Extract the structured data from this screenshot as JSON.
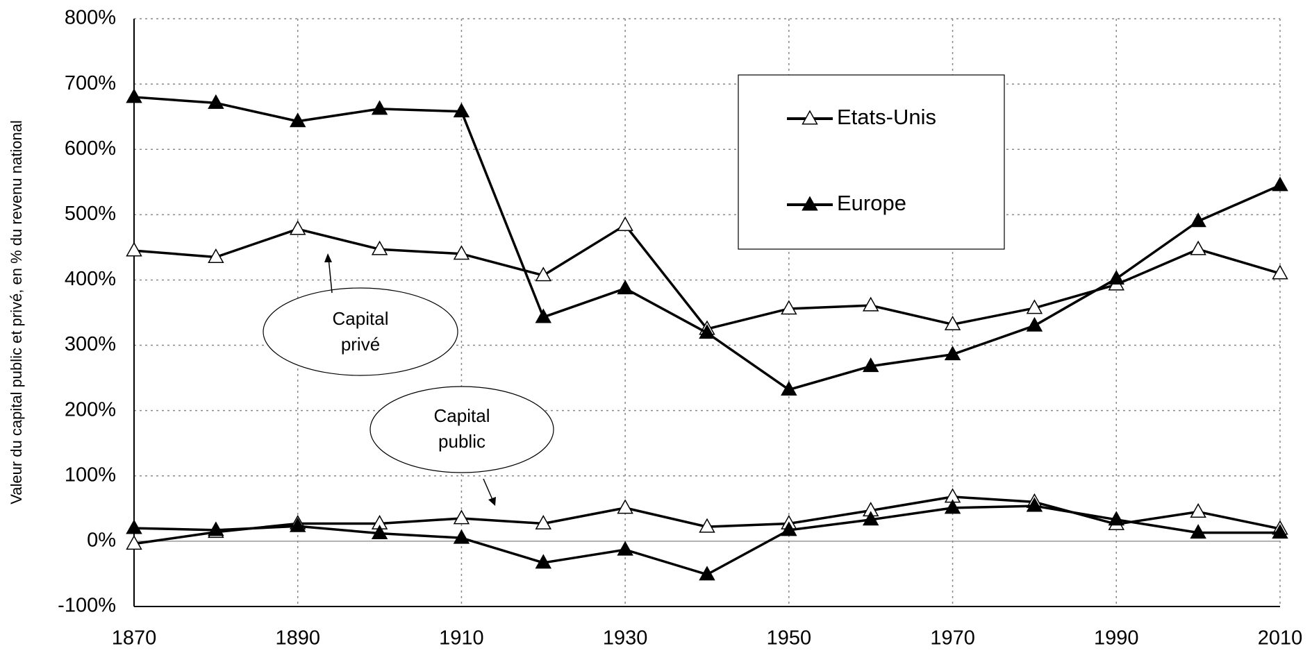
{
  "chart_data": {
    "type": "line",
    "y_label": "Valeur du capital public et privé, en % du revenu national",
    "x": [
      1870,
      1880,
      1890,
      1900,
      1910,
      1920,
      1930,
      1940,
      1950,
      1960,
      1970,
      1980,
      1990,
      2000,
      2010
    ],
    "xlim": [
      1870,
      2010
    ],
    "xticks": [
      1870,
      1890,
      1910,
      1930,
      1950,
      1970,
      1990,
      2010
    ],
    "ylim": [
      -100,
      800
    ],
    "yticks": [
      {
        "value": -100,
        "label": "-100%"
      },
      {
        "value": 0,
        "label": "0%"
      },
      {
        "value": 100,
        "label": "100%"
      },
      {
        "value": 200,
        "label": "200%"
      },
      {
        "value": 300,
        "label": "300%"
      },
      {
        "value": 400,
        "label": "400%"
      },
      {
        "value": 500,
        "label": "500%"
      },
      {
        "value": 600,
        "label": "600%"
      },
      {
        "value": 700,
        "label": "700%"
      },
      {
        "value": 800,
        "label": "800%"
      }
    ],
    "grid": true,
    "series": [
      {
        "name": "Etats-Unis",
        "color": "#000000",
        "marker": "open",
        "values": [
          445,
          435,
          478,
          447,
          440,
          407,
          484,
          325,
          356,
          361,
          332,
          357,
          393,
          447,
          410
        ]
      },
      {
        "name": "Europe",
        "color": "#000000",
        "marker": "filled",
        "values": [
          680,
          671,
          643,
          662,
          658,
          343,
          387,
          319,
          232,
          268,
          286,
          330,
          402,
          490,
          545
        ]
      },
      {
        "name": "Etats-Unis",
        "color": "#000000",
        "marker": "open",
        "values": [
          -4,
          14,
          27,
          27,
          35,
          27,
          51,
          22,
          27,
          47,
          68,
          60,
          26,
          45,
          19
        ]
      },
      {
        "name": "Europe",
        "color": "#000000",
        "marker": "filled",
        "values": [
          20,
          17,
          23,
          12,
          5,
          -33,
          -13,
          -51,
          17,
          33,
          51,
          54,
          33,
          13,
          13
        ]
      }
    ],
    "annotations": [
      {
        "lines": [
          "Capital",
          "privé"
        ]
      },
      {
        "lines": [
          "Capital",
          "public"
        ]
      }
    ]
  }
}
